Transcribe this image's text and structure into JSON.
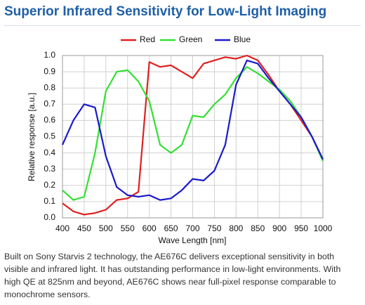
{
  "header": {
    "title": "Superior Infrared Sensitivity for Low-Light Imaging"
  },
  "chart_data": {
    "type": "line",
    "xlabel": "Wave Length [nm]",
    "ylabel": "Relative response [a.u.]",
    "x": [
      400,
      425,
      450,
      475,
      500,
      525,
      550,
      575,
      600,
      625,
      650,
      675,
      700,
      725,
      750,
      775,
      800,
      825,
      850,
      875,
      900,
      925,
      950,
      975,
      1000
    ],
    "series": [
      {
        "name": "Red",
        "color": "#e02020",
        "values": [
          0.09,
          0.04,
          0.02,
          0.03,
          0.05,
          0.11,
          0.12,
          0.16,
          0.96,
          0.93,
          0.94,
          0.9,
          0.86,
          0.95,
          0.97,
          0.99,
          0.98,
          1.0,
          0.97,
          0.88,
          0.78,
          0.7,
          0.6,
          0.5,
          0.36
        ]
      },
      {
        "name": "Green",
        "color": "#33e033",
        "values": [
          0.17,
          0.11,
          0.13,
          0.4,
          0.78,
          0.9,
          0.91,
          0.84,
          0.72,
          0.45,
          0.4,
          0.45,
          0.63,
          0.62,
          0.7,
          0.76,
          0.86,
          0.93,
          0.89,
          0.84,
          0.79,
          0.72,
          0.62,
          0.5,
          0.35
        ]
      },
      {
        "name": "Blue",
        "color": "#1a1acc",
        "values": [
          0.45,
          0.6,
          0.7,
          0.68,
          0.38,
          0.19,
          0.14,
          0.13,
          0.14,
          0.11,
          0.12,
          0.17,
          0.24,
          0.23,
          0.29,
          0.45,
          0.82,
          0.97,
          0.95,
          0.86,
          0.78,
          0.7,
          0.62,
          0.5,
          0.36
        ]
      }
    ],
    "xlim": [
      400,
      1000
    ],
    "xticks": [
      400,
      450,
      500,
      550,
      600,
      650,
      700,
      750,
      800,
      850,
      900,
      950,
      1000
    ],
    "ylim": [
      0,
      1
    ],
    "yticks": [
      {
        "value": 0,
        "label": "0.0"
      },
      0.1,
      0.2,
      0.3,
      0.4,
      0.5,
      0.6,
      0.7,
      0.8,
      0.9,
      {
        "value": 1,
        "label": "1.0"
      }
    ],
    "grid": true,
    "legend": "top"
  },
  "caption": "Built on Sony Starvis 2 technology, the AE676C delivers exceptional sensitivity in both visible and infrared light. It has outstanding performance in low-light environments. With high QE at 825nm and beyond, AE676C shows near full-pixel response comparable to monochrome sensors."
}
